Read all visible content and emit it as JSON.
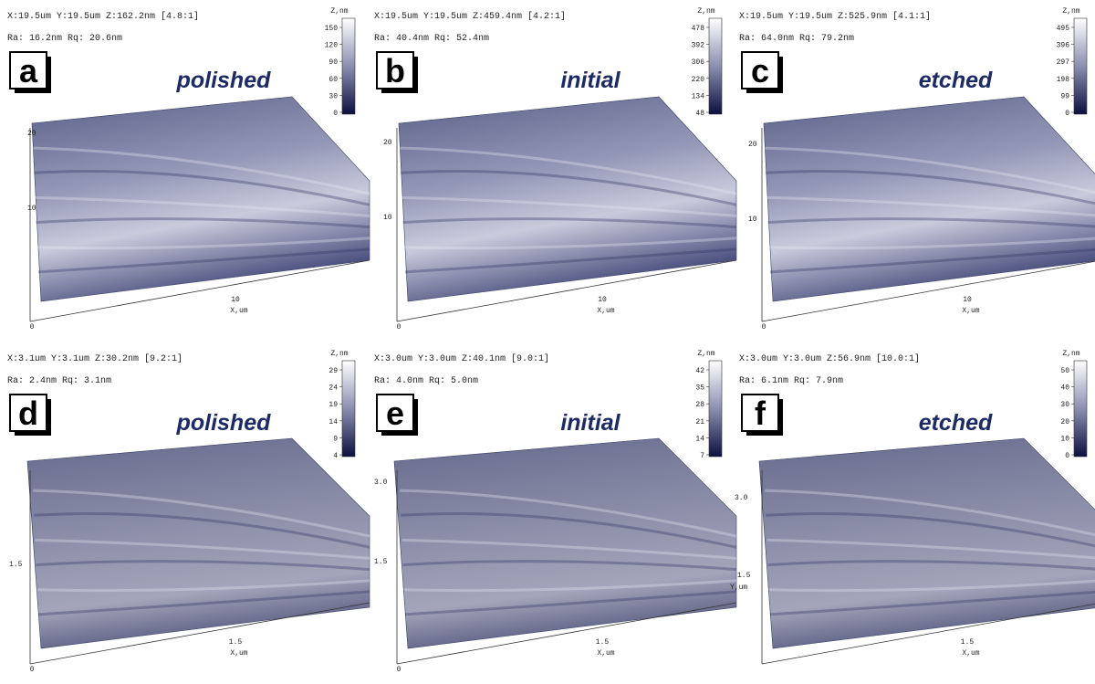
{
  "panels": [
    {
      "letter": "a",
      "title": "polished",
      "header": [
        "X:19.5um  Y:19.5um  Z:162.2nm [4.8:1]",
        "Ra: 16.2nm  Rq: 20.6nm"
      ],
      "colorbar_label": "Z,nm",
      "colorbar_ticks": [
        "150",
        "120",
        "90",
        "60",
        "30",
        "0"
      ],
      "y_axis_labels": [
        "20",
        "10"
      ],
      "x_axis_labels": [
        "10",
        "X,um",
        "0"
      ]
    },
    {
      "letter": "b",
      "title": "initial",
      "header": [
        "X:19.5um  Y:19.5um  Z:459.4nm [4.2:1]",
        "Ra: 40.4nm  Rq: 52.4nm"
      ],
      "colorbar_label": "Z,nm",
      "colorbar_ticks": [
        "478",
        "392",
        "306",
        "220",
        "134",
        "48"
      ],
      "y_axis_labels": [
        "20",
        "10"
      ],
      "x_axis_labels": [
        "10",
        "X,um",
        "0"
      ]
    },
    {
      "letter": "c",
      "title": "etched",
      "header": [
        "X:19.5um  Y:19.5um  Z:525.9nm [4.1:1]",
        "Ra: 64.0nm  Rq: 79.2nm"
      ],
      "colorbar_label": "Z,nm",
      "colorbar_ticks": [
        "495",
        "396",
        "297",
        "198",
        "99",
        "0"
      ],
      "y_axis_labels": [
        "20",
        "10"
      ],
      "x_axis_labels": [
        "10",
        "X,um",
        "0"
      ]
    },
    {
      "letter": "d",
      "title": "polished",
      "header": [
        "X:3.1um  Y:3.1um  Z:30.2nm [9.2:1]",
        "Ra: 2.4nm  Rq: 3.1nm"
      ],
      "colorbar_label": "Z,nm",
      "colorbar_ticks": [
        "29",
        "24",
        "19",
        "14",
        "9",
        "4"
      ],
      "y_axis_labels": [
        "1.5"
      ],
      "x_axis_labels": [
        "1.5",
        "X,um",
        "0"
      ]
    },
    {
      "letter": "e",
      "title": "initial",
      "header": [
        "X:3.0um  Y:3.0um  Z:40.1nm [9.0:1]",
        "Ra: 4.0nm  Rq: 5.0nm"
      ],
      "colorbar_label": "Z,nm",
      "colorbar_ticks": [
        "42",
        "35",
        "28",
        "21",
        "14",
        "7"
      ],
      "y_axis_labels": [
        "3.0",
        "1.5"
      ],
      "x_axis_labels": [
        "1.5",
        "X,um",
        "0"
      ]
    },
    {
      "letter": "f",
      "title": "etched",
      "header": [
        "X:3.0um  Y:3.0um  Z:56.9nm [10.0:1]",
        "Ra: 6.1nm  Rq: 7.9nm"
      ],
      "colorbar_label": "Z,nm",
      "colorbar_ticks": [
        "50",
        "40",
        "30",
        "20",
        "10",
        "0"
      ],
      "y_axis_labels": [
        "3.0",
        "1.5",
        "Y,um"
      ],
      "x_axis_labels": [
        "1.5",
        "X,um"
      ]
    }
  ]
}
